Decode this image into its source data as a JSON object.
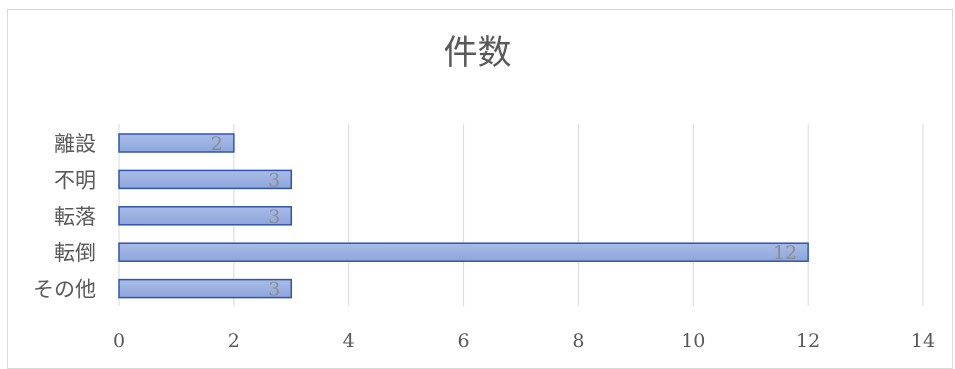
{
  "chart_data": {
    "type": "bar",
    "orientation": "horizontal",
    "title": "件数",
    "categories": [
      "離設",
      "不明",
      "転落",
      "転倒",
      "その他"
    ],
    "values": [
      2,
      3,
      3,
      12,
      3
    ],
    "data_labels": [
      "2",
      "3",
      "3",
      "12",
      "3"
    ],
    "xlabel": "",
    "ylabel": "",
    "xlim": [
      0,
      14
    ],
    "xticks": [
      0,
      2,
      4,
      6,
      8,
      10,
      12,
      14
    ],
    "xtick_labels": [
      "0",
      "2",
      "4",
      "6",
      "8",
      "10",
      "12",
      "14"
    ],
    "grid": true,
    "legend": "none",
    "colors": {
      "bar_fill_top": "#a9bce6",
      "bar_fill_bottom": "#8ea6dc",
      "bar_stroke": "#2f55b4",
      "grid": "#d9d9d9",
      "text": "#595959",
      "data_label": "#8c8c8c"
    }
  }
}
